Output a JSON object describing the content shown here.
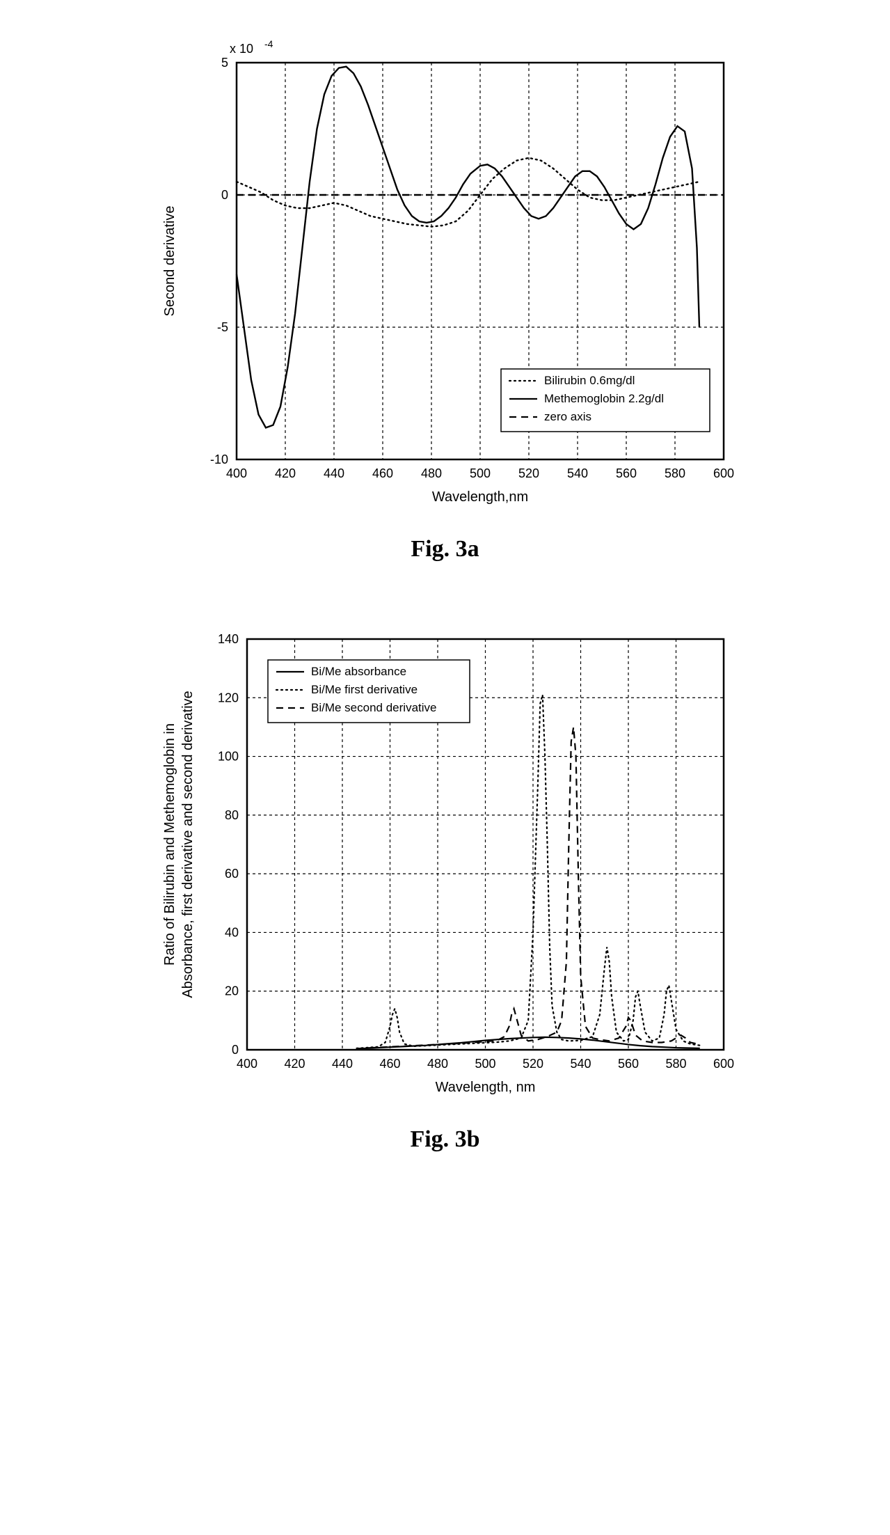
{
  "fig_a": {
    "caption": "Fig. 3a",
    "type": "line",
    "xlabel": "Wavelength,nm",
    "ylabel": "Second derivative",
    "label_fontsize": 20,
    "tick_fontsize": 18,
    "multiplier_label": "x 10",
    "multiplier_sup": "-4",
    "x": {
      "min": 400,
      "max": 600,
      "ticks": [
        400,
        420,
        440,
        460,
        480,
        500,
        520,
        540,
        560,
        580,
        600
      ]
    },
    "y": {
      "min": -10,
      "max": 5,
      "ticks": [
        -10,
        -5,
        0,
        5
      ]
    },
    "background_color": "#ffffff",
    "axis_color": "#000000",
    "grid_color": "#000000",
    "grid_dash": "4 4",
    "line_width": 2.4,
    "legend": {
      "position": "bottom-right",
      "items": [
        {
          "label": "Bilirubin 0.6mg/dl",
          "style": "dotted",
          "color": "#000000"
        },
        {
          "label": "Methemoglobin 2.2g/dl",
          "style": "solid",
          "color": "#000000"
        },
        {
          "label": "zero axis",
          "style": "dashed",
          "color": "#000000"
        }
      ]
    },
    "series": [
      {
        "name": "bilirubin",
        "style": "dotted",
        "color": "#000000",
        "points": [
          [
            400,
            0.5
          ],
          [
            405,
            0.3
          ],
          [
            410,
            0.1
          ],
          [
            415,
            -0.2
          ],
          [
            420,
            -0.4
          ],
          [
            425,
            -0.5
          ],
          [
            430,
            -0.5
          ],
          [
            435,
            -0.4
          ],
          [
            440,
            -0.3
          ],
          [
            445,
            -0.4
          ],
          [
            450,
            -0.6
          ],
          [
            455,
            -0.8
          ],
          [
            460,
            -0.9
          ],
          [
            465,
            -1.0
          ],
          [
            470,
            -1.1
          ],
          [
            475,
            -1.15
          ],
          [
            480,
            -1.2
          ],
          [
            485,
            -1.15
          ],
          [
            490,
            -1.0
          ],
          [
            495,
            -0.6
          ],
          [
            500,
            0.0
          ],
          [
            505,
            0.6
          ],
          [
            510,
            1.0
          ],
          [
            515,
            1.3
          ],
          [
            520,
            1.4
          ],
          [
            525,
            1.3
          ],
          [
            530,
            1.0
          ],
          [
            535,
            0.6
          ],
          [
            540,
            0.2
          ],
          [
            545,
            -0.1
          ],
          [
            550,
            -0.2
          ],
          [
            555,
            -0.2
          ],
          [
            560,
            -0.1
          ],
          [
            565,
            0.0
          ],
          [
            570,
            0.1
          ],
          [
            575,
            0.2
          ],
          [
            580,
            0.3
          ],
          [
            585,
            0.4
          ],
          [
            590,
            0.5
          ]
        ]
      },
      {
        "name": "methemoglobin",
        "style": "solid",
        "color": "#000000",
        "points": [
          [
            400,
            -3.0
          ],
          [
            403,
            -5.0
          ],
          [
            406,
            -7.0
          ],
          [
            409,
            -8.3
          ],
          [
            412,
            -8.8
          ],
          [
            415,
            -8.7
          ],
          [
            418,
            -8.0
          ],
          [
            421,
            -6.5
          ],
          [
            424,
            -4.5
          ],
          [
            427,
            -2.0
          ],
          [
            430,
            0.5
          ],
          [
            433,
            2.5
          ],
          [
            436,
            3.8
          ],
          [
            439,
            4.5
          ],
          [
            442,
            4.8
          ],
          [
            445,
            4.85
          ],
          [
            448,
            4.6
          ],
          [
            451,
            4.1
          ],
          [
            454,
            3.4
          ],
          [
            457,
            2.6
          ],
          [
            460,
            1.8
          ],
          [
            463,
            1.0
          ],
          [
            466,
            0.2
          ],
          [
            469,
            -0.4
          ],
          [
            472,
            -0.8
          ],
          [
            475,
            -1.0
          ],
          [
            478,
            -1.05
          ],
          [
            481,
            -1.0
          ],
          [
            484,
            -0.8
          ],
          [
            487,
            -0.5
          ],
          [
            490,
            -0.1
          ],
          [
            493,
            0.4
          ],
          [
            496,
            0.8
          ],
          [
            500,
            1.1
          ],
          [
            503,
            1.15
          ],
          [
            506,
            1.0
          ],
          [
            509,
            0.7
          ],
          [
            512,
            0.3
          ],
          [
            515,
            -0.1
          ],
          [
            518,
            -0.5
          ],
          [
            521,
            -0.8
          ],
          [
            524,
            -0.9
          ],
          [
            527,
            -0.8
          ],
          [
            530,
            -0.5
          ],
          [
            533,
            -0.1
          ],
          [
            536,
            0.3
          ],
          [
            539,
            0.7
          ],
          [
            542,
            0.9
          ],
          [
            545,
            0.9
          ],
          [
            548,
            0.7
          ],
          [
            551,
            0.3
          ],
          [
            554,
            -0.2
          ],
          [
            557,
            -0.7
          ],
          [
            560,
            -1.1
          ],
          [
            563,
            -1.3
          ],
          [
            566,
            -1.1
          ],
          [
            569,
            -0.5
          ],
          [
            572,
            0.4
          ],
          [
            575,
            1.4
          ],
          [
            578,
            2.2
          ],
          [
            581,
            2.6
          ],
          [
            584,
            2.4
          ],
          [
            587,
            1.0
          ],
          [
            589,
            -2.0
          ],
          [
            590,
            -5.0
          ]
        ]
      },
      {
        "name": "zero-axis",
        "style": "dashed",
        "color": "#000000",
        "points": [
          [
            400,
            0
          ],
          [
            600,
            0
          ]
        ]
      }
    ]
  },
  "fig_b": {
    "caption": "Fig. 3b",
    "type": "line",
    "xlabel": "Wavelength, nm",
    "ylabel_line1": "Ratio of Bilirubin and Methemoglobin in",
    "ylabel_line2": "Absorbance, first derivative and second derivative",
    "label_fontsize": 20,
    "tick_fontsize": 18,
    "x": {
      "min": 400,
      "max": 600,
      "ticks": [
        400,
        420,
        440,
        460,
        480,
        500,
        520,
        540,
        560,
        580,
        600
      ]
    },
    "y": {
      "min": 0,
      "max": 140,
      "ticks": [
        0,
        20,
        40,
        60,
        80,
        100,
        120,
        140
      ]
    },
    "background_color": "#ffffff",
    "axis_color": "#000000",
    "grid_color": "#000000",
    "grid_dash": "4 4",
    "line_width": 2.2,
    "legend": {
      "position": "top-left",
      "items": [
        {
          "label": "Bi/Me absorbance",
          "style": "solid",
          "color": "#000000"
        },
        {
          "label": "Bi/Me first derivative",
          "style": "dotted",
          "color": "#000000"
        },
        {
          "label": "Bi/Me second derivative",
          "style": "dashed",
          "color": "#000000"
        }
      ]
    },
    "series": [
      {
        "name": "absorbance",
        "style": "solid",
        "color": "#000000",
        "points": [
          [
            446,
            0.3
          ],
          [
            450,
            0.5
          ],
          [
            455,
            0.7
          ],
          [
            460,
            0.9
          ],
          [
            465,
            1.1
          ],
          [
            470,
            1.3
          ],
          [
            475,
            1.5
          ],
          [
            480,
            1.8
          ],
          [
            485,
            2.1
          ],
          [
            490,
            2.4
          ],
          [
            495,
            2.8
          ],
          [
            500,
            3.2
          ],
          [
            505,
            3.5
          ],
          [
            510,
            3.8
          ],
          [
            515,
            4.0
          ],
          [
            520,
            4.2
          ],
          [
            525,
            4.3
          ],
          [
            530,
            4.2
          ],
          [
            535,
            4.0
          ],
          [
            540,
            3.7
          ],
          [
            545,
            3.3
          ],
          [
            550,
            2.8
          ],
          [
            555,
            2.3
          ],
          [
            560,
            1.8
          ],
          [
            565,
            1.4
          ],
          [
            570,
            1.1
          ],
          [
            575,
            0.9
          ],
          [
            580,
            0.7
          ],
          [
            585,
            0.6
          ],
          [
            590,
            0.5
          ]
        ]
      },
      {
        "name": "first-derivative",
        "style": "dotted",
        "color": "#000000",
        "points": [
          [
            446,
            0.5
          ],
          [
            450,
            0.7
          ],
          [
            455,
            1.0
          ],
          [
            458,
            2.5
          ],
          [
            460,
            8.0
          ],
          [
            461,
            12.0
          ],
          [
            462,
            14.0
          ],
          [
            463,
            11.0
          ],
          [
            464,
            6.0
          ],
          [
            466,
            2.0
          ],
          [
            470,
            1.2
          ],
          [
            475,
            1.4
          ],
          [
            480,
            1.6
          ],
          [
            485,
            1.8
          ],
          [
            490,
            2.0
          ],
          [
            495,
            2.2
          ],
          [
            500,
            2.4
          ],
          [
            505,
            2.6
          ],
          [
            510,
            3.0
          ],
          [
            515,
            4.0
          ],
          [
            518,
            10.0
          ],
          [
            520,
            40.0
          ],
          [
            522,
            90.0
          ],
          [
            523,
            118.0
          ],
          [
            524,
            121.0
          ],
          [
            525,
            100.0
          ],
          [
            526,
            70.0
          ],
          [
            527,
            35.0
          ],
          [
            528,
            15.0
          ],
          [
            530,
            6.0
          ],
          [
            532,
            3.5
          ],
          [
            535,
            3.0
          ],
          [
            540,
            3.2
          ],
          [
            545,
            4.5
          ],
          [
            548,
            12.0
          ],
          [
            550,
            28.0
          ],
          [
            551,
            35.0
          ],
          [
            552,
            30.0
          ],
          [
            553,
            18.0
          ],
          [
            555,
            6.0
          ],
          [
            558,
            3.0
          ],
          [
            560,
            3.5
          ],
          [
            562,
            10.0
          ],
          [
            563,
            18.0
          ],
          [
            564,
            20.0
          ],
          [
            565,
            15.0
          ],
          [
            567,
            6.0
          ],
          [
            570,
            3.0
          ],
          [
            573,
            4.0
          ],
          [
            575,
            12.0
          ],
          [
            576,
            20.0
          ],
          [
            577,
            22.0
          ],
          [
            578,
            17.0
          ],
          [
            580,
            7.0
          ],
          [
            583,
            3.0
          ],
          [
            586,
            2.0
          ],
          [
            590,
            1.5
          ]
        ]
      },
      {
        "name": "second-derivative",
        "style": "dashed",
        "color": "#000000",
        "points": [
          [
            446,
            0.4
          ],
          [
            450,
            0.6
          ],
          [
            455,
            0.8
          ],
          [
            460,
            1.0
          ],
          [
            465,
            1.2
          ],
          [
            470,
            1.4
          ],
          [
            475,
            1.6
          ],
          [
            480,
            1.8
          ],
          [
            485,
            2.0
          ],
          [
            490,
            2.2
          ],
          [
            495,
            2.5
          ],
          [
            500,
            2.8
          ],
          [
            505,
            3.2
          ],
          [
            508,
            4.5
          ],
          [
            510,
            8.0
          ],
          [
            511,
            12.0
          ],
          [
            512,
            14.0
          ],
          [
            513,
            11.0
          ],
          [
            515,
            5.0
          ],
          [
            518,
            3.0
          ],
          [
            522,
            3.5
          ],
          [
            526,
            4.5
          ],
          [
            530,
            6.0
          ],
          [
            532,
            10.0
          ],
          [
            534,
            30.0
          ],
          [
            535,
            70.0
          ],
          [
            536,
            105.0
          ],
          [
            537,
            110.0
          ],
          [
            538,
            100.0
          ],
          [
            539,
            60.0
          ],
          [
            540,
            25.0
          ],
          [
            542,
            8.0
          ],
          [
            545,
            4.0
          ],
          [
            548,
            3.5
          ],
          [
            552,
            3.0
          ],
          [
            556,
            4.0
          ],
          [
            559,
            8.0
          ],
          [
            560,
            11.0
          ],
          [
            561,
            10.0
          ],
          [
            563,
            5.0
          ],
          [
            566,
            3.0
          ],
          [
            570,
            2.5
          ],
          [
            574,
            2.5
          ],
          [
            578,
            3.0
          ],
          [
            582,
            5.0
          ],
          [
            584,
            4.0
          ],
          [
            586,
            2.5
          ],
          [
            590,
            1.8
          ]
        ]
      }
    ]
  }
}
